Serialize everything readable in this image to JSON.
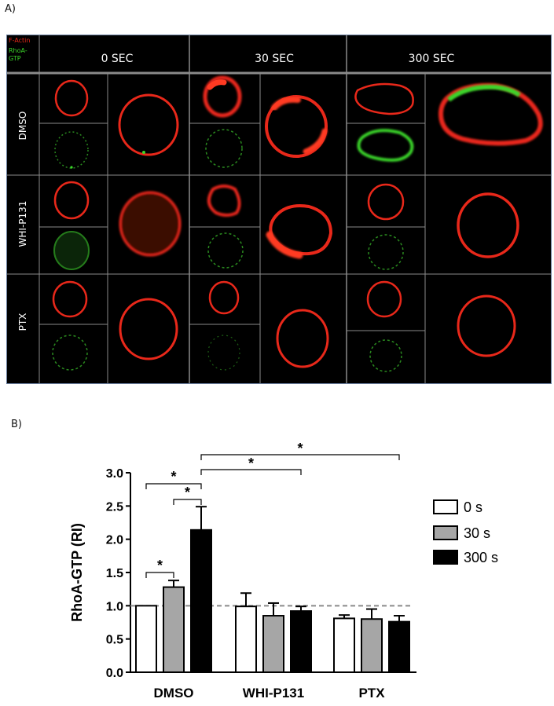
{
  "panel_a_label": "A)",
  "panel_b_label": "B)",
  "figure_a": {
    "legend": {
      "line1": "F-Actin",
      "line2": "RhoA-",
      "line3": "GTP"
    },
    "columns": [
      "0 SEC",
      "30 SEC",
      "300 SEC"
    ],
    "rows": [
      "DMSO",
      "WHI-P131",
      "PTX"
    ],
    "colors": {
      "actin": "#e8281a",
      "rhoa": "#3bd62a",
      "grid": "#8a8a8a",
      "background": "#000000"
    }
  },
  "chart_data": {
    "type": "bar",
    "categories": [
      "DMSO",
      "WHI-P131",
      "PTX"
    ],
    "series": [
      {
        "name": "0 s",
        "values": [
          1.0,
          0.99,
          0.81
        ],
        "errors": [
          0.0,
          0.2,
          0.05
        ],
        "color": "#ffffff"
      },
      {
        "name": "30 s",
        "values": [
          1.28,
          0.85,
          0.8
        ],
        "errors": [
          0.1,
          0.19,
          0.15
        ],
        "color": "#a6a6a6"
      },
      {
        "name": "300 s",
        "values": [
          2.14,
          0.92,
          0.76
        ],
        "errors": [
          0.35,
          0.07,
          0.09
        ],
        "color": "#000000"
      }
    ],
    "ylabel": "RhoA-GTP (RI)",
    "ylim": [
      0.0,
      3.0
    ],
    "yticks": [
      "0.0",
      "0.5",
      "1.0",
      "1.5",
      "2.0",
      "2.5",
      "3.0"
    ],
    "reference_line": 1.0,
    "legend_position": "right",
    "significance_marker": "*"
  }
}
